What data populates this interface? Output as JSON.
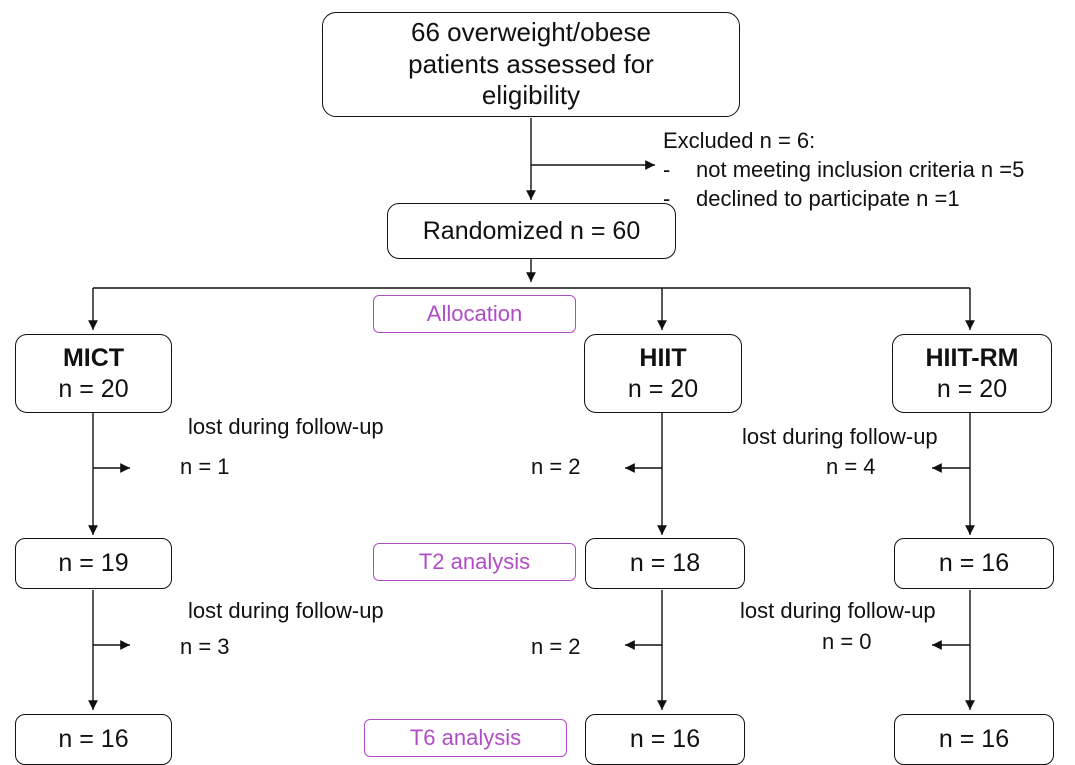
{
  "top": {
    "lines": [
      "66 overweight/obese",
      "patients assessed for",
      "eligibility"
    ]
  },
  "excluded": {
    "title": "Excluded n = 6:",
    "items": [
      "not meeting inclusion criteria n =5",
      "declined to participate n =1"
    ]
  },
  "randomized": "Randomized n = 60",
  "stages": {
    "allocation": "Allocation",
    "t2": "T2 analysis",
    "t6": "T6 analysis"
  },
  "groups": [
    {
      "name": "MICT",
      "n": "n = 20",
      "lost1_label": "lost during follow-up",
      "lost1": "n = 1",
      "t2": "n = 19",
      "lost2_label": "lost during follow-up",
      "lost2": "n = 3",
      "t6": "n = 16"
    },
    {
      "name": "HIIT",
      "n": "n = 20",
      "lost1_label": "",
      "lost1": "n = 2",
      "t2": "n = 18",
      "lost2_label": "",
      "lost2": "n = 2",
      "t6": "n = 16"
    },
    {
      "name": "HIIT-RM",
      "n": "n = 20",
      "lost1_label": "lost during follow-up",
      "lost1": "n = 4",
      "t2": "n = 16",
      "lost2_label": "lost during follow-up",
      "lost2": "n = 0",
      "t6": "n = 16"
    }
  ]
}
